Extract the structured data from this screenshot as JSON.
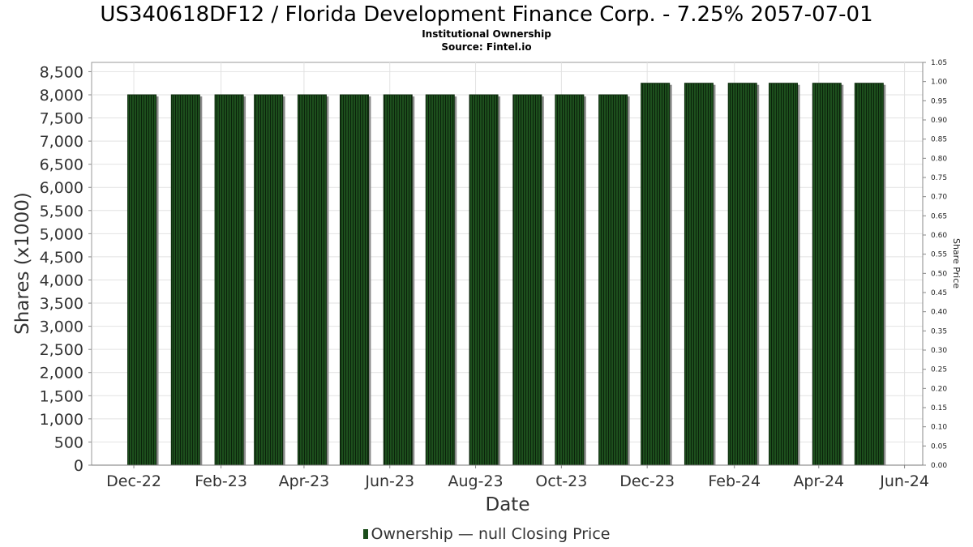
{
  "chart_data": {
    "type": "bar",
    "title": "US340618DF12 / Florida Development Finance Corp. - 7.25% 2057-07-01",
    "subtitles": [
      "Institutional Ownership",
      "Source: Fintel.io"
    ],
    "xlabel": "Date",
    "ylabel": "Shares (x1000)",
    "y2label": "Share Price",
    "x_tick_labels": [
      "Dec-22",
      "Feb-23",
      "Apr-23",
      "Jun-23",
      "Aug-23",
      "Oct-23",
      "Dec-23",
      "Feb-24",
      "Apr-24",
      "Jun-24"
    ],
    "y_ticks": [
      "0",
      "500",
      "1,000",
      "1,500",
      "2,000",
      "2,500",
      "3,000",
      "3,500",
      "4,000",
      "4,500",
      "5,000",
      "5,500",
      "6,000",
      "6,500",
      "7,000",
      "7,500",
      "8,000",
      "8,500"
    ],
    "y2_ticks": [
      "0.00",
      "0.05",
      "0.10",
      "0.15",
      "0.20",
      "0.25",
      "0.30",
      "0.35",
      "0.40",
      "0.45",
      "0.50",
      "0.55",
      "0.60",
      "0.65",
      "0.70",
      "0.75",
      "0.80",
      "0.85",
      "0.90",
      "0.95",
      "1.00",
      "1.05"
    ],
    "ylim": [
      0,
      8700
    ],
    "y2lim": [
      0,
      1.05
    ],
    "grid": true,
    "legend_position": "bottom",
    "series": [
      {
        "name": "Ownership",
        "color": "#1b4d1b",
        "x": [
          "2022-12-01",
          "2023-01-01",
          "2023-02-01",
          "2023-03-01",
          "2023-04-01",
          "2023-05-01",
          "2023-06-01",
          "2023-07-01",
          "2023-08-01",
          "2023-09-01",
          "2023-10-01",
          "2023-11-01",
          "2023-12-01",
          "2024-01-01",
          "2024-02-01",
          "2024-03-01",
          "2024-04-01",
          "2024-05-01"
        ],
        "values": [
          8000,
          8000,
          8000,
          8000,
          8000,
          8000,
          8000,
          8000,
          8000,
          8000,
          8000,
          8000,
          8250,
          8250,
          8250,
          8250,
          8250,
          8250
        ]
      }
    ]
  },
  "legend": {
    "ownership_label": "Ownership",
    "price_label": "null Closing Price"
  }
}
